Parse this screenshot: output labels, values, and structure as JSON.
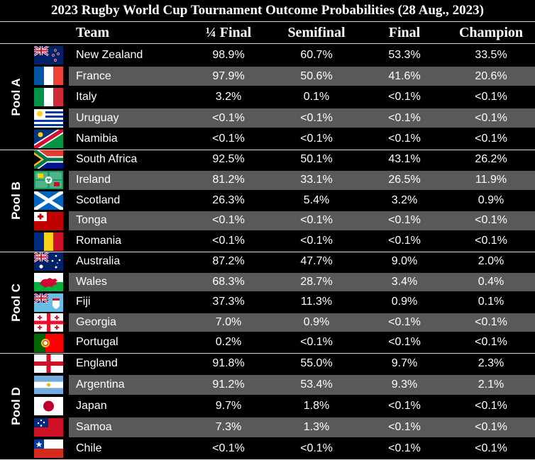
{
  "title": "2023 Rugby World Cup Tournament Outcome Probabilities (28 Aug., 2023)",
  "colors": {
    "background": "#000000",
    "alt_row": "#595959",
    "text": "#ffffff",
    "rule": "#d8d8d8"
  },
  "chart_data": {
    "type": "table",
    "title": "2023 Rugby World Cup Tournament Outcome Probabilities (28 Aug., 2023)",
    "columns": [
      "Team",
      "¼ Final",
      "Semifinal",
      "Final",
      "Champion"
    ],
    "pools": [
      {
        "name": "Pool A",
        "teams": [
          {
            "team": "New Zealand",
            "flag": "new-zealand",
            "quarter": "98.9%",
            "semi": "60.7%",
            "final": "53.3%",
            "champion": "33.5%"
          },
          {
            "team": "France",
            "flag": "france",
            "quarter": "97.9%",
            "semi": "50.6%",
            "final": "41.6%",
            "champion": "20.6%"
          },
          {
            "team": "Italy",
            "flag": "italy",
            "quarter": "3.2%",
            "semi": "0.1%",
            "final": "<0.1%",
            "champion": "<0.1%"
          },
          {
            "team": "Uruguay",
            "flag": "uruguay",
            "quarter": "<0.1%",
            "semi": "<0.1%",
            "final": "<0.1%",
            "champion": "<0.1%"
          },
          {
            "team": "Namibia",
            "flag": "namibia",
            "quarter": "<0.1%",
            "semi": "<0.1%",
            "final": "<0.1%",
            "champion": "<0.1%"
          }
        ]
      },
      {
        "name": "Pool B",
        "teams": [
          {
            "team": "South Africa",
            "flag": "south-africa",
            "quarter": "92.5%",
            "semi": "50.1%",
            "final": "43.1%",
            "champion": "26.2%"
          },
          {
            "team": "Ireland",
            "flag": "ireland-rugby",
            "quarter": "81.2%",
            "semi": "33.1%",
            "final": "26.5%",
            "champion": "11.9%"
          },
          {
            "team": "Scotland",
            "flag": "scotland",
            "quarter": "26.3%",
            "semi": "5.4%",
            "final": "3.2%",
            "champion": "0.9%"
          },
          {
            "team": "Tonga",
            "flag": "tonga",
            "quarter": "<0.1%",
            "semi": "<0.1%",
            "final": "<0.1%",
            "champion": "<0.1%"
          },
          {
            "team": "Romania",
            "flag": "romania",
            "quarter": "<0.1%",
            "semi": "<0.1%",
            "final": "<0.1%",
            "champion": "<0.1%"
          }
        ]
      },
      {
        "name": "Pool C",
        "teams": [
          {
            "team": "Australia",
            "flag": "australia",
            "quarter": "87.2%",
            "semi": "47.7%",
            "final": "9.0%",
            "champion": "2.0%"
          },
          {
            "team": "Wales",
            "flag": "wales",
            "quarter": "68.3%",
            "semi": "28.7%",
            "final": "3.4%",
            "champion": "0.4%"
          },
          {
            "team": "Fiji",
            "flag": "fiji",
            "quarter": "37.3%",
            "semi": "11.3%",
            "final": "0.9%",
            "champion": "0.1%"
          },
          {
            "team": "Georgia",
            "flag": "georgia",
            "quarter": "7.0%",
            "semi": "0.9%",
            "final": "<0.1%",
            "champion": "<0.1%"
          },
          {
            "team": "Portugal",
            "flag": "portugal",
            "quarter": "0.2%",
            "semi": "<0.1%",
            "final": "<0.1%",
            "champion": "<0.1%"
          }
        ]
      },
      {
        "name": "Pool D",
        "teams": [
          {
            "team": "England",
            "flag": "england",
            "quarter": "91.8%",
            "semi": "55.0%",
            "final": "9.7%",
            "champion": "2.3%"
          },
          {
            "team": "Argentina",
            "flag": "argentina",
            "quarter": "91.2%",
            "semi": "53.4%",
            "final": "9.3%",
            "champion": "2.1%"
          },
          {
            "team": "Japan",
            "flag": "japan",
            "quarter": "9.7%",
            "semi": "1.8%",
            "final": "<0.1%",
            "champion": "<0.1%"
          },
          {
            "team": "Samoa",
            "flag": "samoa",
            "quarter": "7.3%",
            "semi": "1.3%",
            "final": "<0.1%",
            "champion": "<0.1%"
          },
          {
            "team": "Chile",
            "flag": "chile",
            "quarter": "<0.1%",
            "semi": "<0.1%",
            "final": "<0.1%",
            "champion": "<0.1%"
          }
        ]
      }
    ]
  }
}
